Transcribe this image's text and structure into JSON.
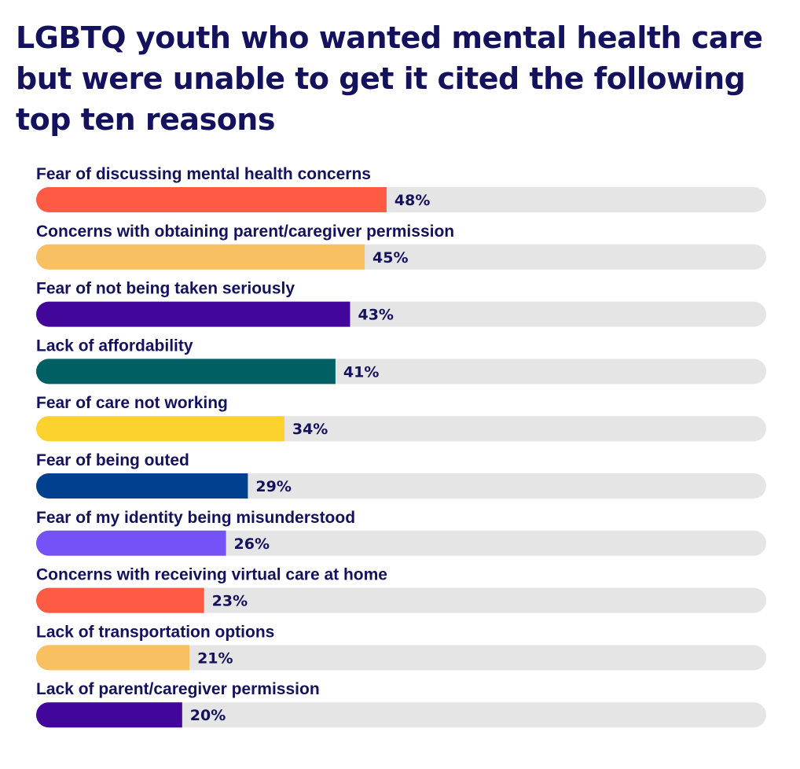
{
  "chart_data": {
    "type": "bar",
    "orientation": "horizontal",
    "title": "LGBTQ youth who wanted mental health care but were unable to get it cited the following top ten reasons",
    "categories": [
      "Fear of discussing mental health concerns",
      "Concerns with obtaining parent/caregiver permission",
      "Fear of not being taken seriously",
      "Lack of affordability",
      "Fear of care not working",
      "Fear of being outed",
      "Fear of my identity being misunderstood",
      "Concerns with receiving virtual care at home",
      "Lack of transportation options",
      "Lack of parent/caregiver permission"
    ],
    "values": [
      48,
      45,
      43,
      41,
      34,
      29,
      26,
      23,
      21,
      20
    ],
    "value_labels": [
      "48%",
      "45%",
      "43%",
      "41%",
      "34%",
      "29%",
      "26%",
      "23%",
      "21%",
      "20%"
    ],
    "xlim": [
      0,
      100
    ],
    "colors": [
      "#ff5a43",
      "#f9c062",
      "#43069a",
      "#005f63",
      "#fdd22e",
      "#00408f",
      "#7552f8",
      "#ff5a43",
      "#f9c062",
      "#43069a"
    ],
    "track_color": "#e5e5e5",
    "text_color": "#14125c",
    "grid": false,
    "legend": "none"
  }
}
